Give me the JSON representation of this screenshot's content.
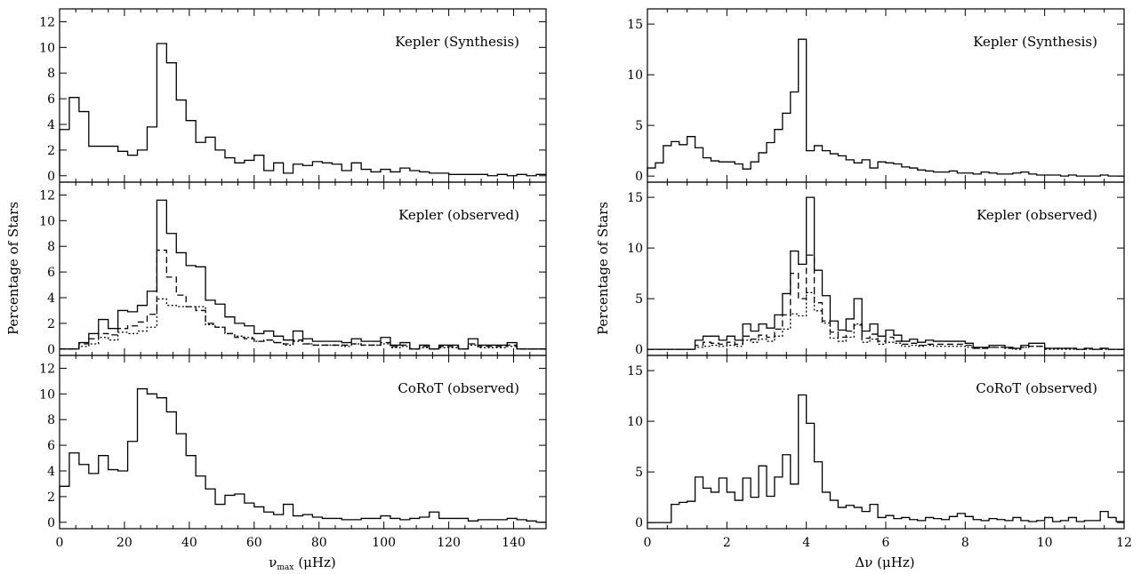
{
  "figure": {
    "ylabel": "Percentage of Stars",
    "left_xlabel": "ν",
    "left_xlabel_sub": "max",
    "left_xlabel_unit": "(μHz)",
    "right_xlabel": "Δν (μHz)"
  },
  "chart_data": [
    {
      "type": "step-histogram",
      "title": "Kepler (Synthesis)",
      "xlabel": "ν_max (μHz)",
      "ylabel": "Percentage of Stars",
      "xlim": [
        0,
        150
      ],
      "ylim": [
        -0.5,
        13
      ],
      "xticks": [
        0,
        20,
        40,
        60,
        80,
        100,
        120,
        140
      ],
      "yticks": [
        0,
        2,
        4,
        6,
        8,
        10,
        12
      ],
      "grid": false,
      "bin_edges": [
        0,
        3,
        6,
        9,
        12,
        15,
        18,
        21,
        24,
        27,
        30,
        33,
        36,
        39,
        42,
        45,
        48,
        51,
        54,
        57,
        60,
        63,
        66,
        69,
        72,
        75,
        78,
        81,
        84,
        87,
        90,
        93,
        96,
        99,
        102,
        105,
        108,
        111,
        114,
        117,
        120,
        123,
        126,
        129,
        132,
        135,
        138,
        141,
        144,
        147,
        150
      ],
      "series": [
        {
          "style": "solid",
          "values": [
            3.6,
            6.1,
            5.0,
            2.3,
            2.3,
            2.3,
            1.9,
            1.6,
            2.0,
            3.8,
            10.3,
            8.8,
            5.9,
            4.3,
            2.6,
            3.0,
            2.0,
            1.4,
            1.0,
            1.2,
            1.6,
            0.4,
            1.0,
            0.2,
            0.9,
            0.8,
            1.1,
            1.0,
            0.9,
            0.4,
            1.0,
            0.5,
            0.3,
            0.5,
            0.3,
            0.6,
            0.4,
            0.3,
            0.2,
            0.2,
            0.1,
            0.1,
            0.1,
            0.1,
            0.0,
            0.1,
            0.0,
            0.1,
            0.0,
            0.1
          ]
        }
      ]
    },
    {
      "type": "step-histogram",
      "title": "Kepler (observed)",
      "xlabel": "ν_max (μHz)",
      "ylabel": "Percentage of Stars",
      "xlim": [
        0,
        150
      ],
      "ylim": [
        -0.5,
        13
      ],
      "xticks": [
        0,
        20,
        40,
        60,
        80,
        100,
        120,
        140
      ],
      "yticks": [
        0,
        2,
        4,
        6,
        8,
        10,
        12
      ],
      "grid": false,
      "bin_edges": [
        0,
        3,
        6,
        9,
        12,
        15,
        18,
        21,
        24,
        27,
        30,
        33,
        36,
        39,
        42,
        45,
        48,
        51,
        54,
        57,
        60,
        63,
        66,
        69,
        72,
        75,
        78,
        81,
        84,
        87,
        90,
        93,
        96,
        99,
        102,
        105,
        108,
        111,
        114,
        117,
        120,
        123,
        126,
        129,
        132,
        135,
        138,
        141,
        144,
        147,
        150
      ],
      "series": [
        {
          "style": "solid",
          "values": [
            0.0,
            0.0,
            0.5,
            1.2,
            2.3,
            1.6,
            3.0,
            2.9,
            3.4,
            4.5,
            11.6,
            9.0,
            7.5,
            6.5,
            6.4,
            3.8,
            3.5,
            2.5,
            2.0,
            1.8,
            1.2,
            1.4,
            1.0,
            0.7,
            1.4,
            0.8,
            0.6,
            0.6,
            0.6,
            0.5,
            0.8,
            0.6,
            0.6,
            0.9,
            0.3,
            0.5,
            0.0,
            0.3,
            0.0,
            0.3,
            0.3,
            0.0,
            0.8,
            0.3,
            0.3,
            0.3,
            0.5,
            0.0,
            0.0,
            0.0
          ]
        },
        {
          "style": "dashed",
          "values": [
            0.0,
            0.0,
            0.4,
            0.8,
            1.2,
            1.1,
            1.6,
            1.8,
            2.1,
            2.7,
            7.7,
            5.6,
            4.2,
            3.3,
            3.0,
            2.0,
            1.7,
            1.2,
            0.9,
            0.8,
            0.6,
            0.7,
            0.5,
            0.4,
            0.7,
            0.4,
            0.3,
            0.3,
            0.3,
            0.3,
            0.4,
            0.3,
            0.3,
            0.5,
            0.2,
            0.3,
            0.0,
            0.2,
            0.0,
            0.2,
            0.2,
            0.0,
            0.4,
            0.2,
            0.2,
            0.2,
            0.3,
            0.0,
            0.0,
            0.0
          ]
        },
        {
          "style": "dotted",
          "values": [
            0.0,
            0.0,
            0.2,
            0.4,
            0.9,
            0.7,
            1.3,
            1.2,
            1.4,
            1.7,
            3.9,
            3.4,
            3.3,
            3.3,
            3.3,
            1.9,
            1.7,
            1.2,
            1.0,
            0.9,
            0.6,
            0.7,
            0.5,
            0.3,
            0.6,
            0.4,
            0.3,
            0.3,
            0.3,
            0.2,
            0.4,
            0.3,
            0.3,
            0.4,
            0.1,
            0.2,
            0.0,
            0.1,
            0.0,
            0.1,
            0.1,
            0.0,
            0.3,
            0.1,
            0.1,
            0.1,
            0.2,
            0.0,
            0.0,
            0.0
          ]
        }
      ]
    },
    {
      "type": "step-histogram",
      "title": "CoRoT (observed)",
      "xlabel": "ν_max (μHz)",
      "ylabel": "Percentage of Stars",
      "xlim": [
        0,
        150
      ],
      "ylim": [
        -0.5,
        13
      ],
      "xticks": [
        0,
        20,
        40,
        60,
        80,
        100,
        120,
        140
      ],
      "yticks": [
        0,
        2,
        4,
        6,
        8,
        10,
        12
      ],
      "grid": false,
      "bin_edges": [
        0,
        3,
        6,
        9,
        12,
        15,
        18,
        21,
        24,
        27,
        30,
        33,
        36,
        39,
        42,
        45,
        48,
        51,
        54,
        57,
        60,
        63,
        66,
        69,
        72,
        75,
        78,
        81,
        84,
        87,
        90,
        93,
        96,
        99,
        102,
        105,
        108,
        111,
        114,
        117,
        120,
        123,
        126,
        129,
        132,
        135,
        138,
        141,
        144,
        147,
        150
      ],
      "series": [
        {
          "style": "solid",
          "values": [
            2.8,
            5.4,
            4.5,
            3.8,
            5.2,
            4.1,
            4.0,
            6.3,
            10.4,
            10.0,
            9.7,
            8.6,
            6.9,
            5.2,
            3.6,
            2.6,
            1.4,
            2.1,
            2.2,
            1.5,
            1.2,
            0.8,
            0.6,
            1.4,
            0.5,
            0.6,
            0.4,
            0.3,
            0.3,
            0.2,
            0.2,
            0.3,
            0.3,
            0.5,
            0.3,
            0.2,
            0.3,
            0.4,
            0.8,
            0.3,
            0.3,
            0.3,
            0.1,
            0.2,
            0.2,
            0.2,
            0.3,
            0.2,
            0.1,
            0.0
          ]
        }
      ]
    },
    {
      "type": "step-histogram",
      "title": "Kepler (Synthesis)",
      "xlabel": "Δν (μHz)",
      "ylabel": "Percentage of Stars",
      "xlim": [
        0,
        12
      ],
      "ylim": [
        -0.6,
        16.5
      ],
      "xticks": [
        0,
        2,
        4,
        6,
        8,
        10,
        12
      ],
      "yticks": [
        0,
        5,
        10,
        15
      ],
      "grid": false,
      "bin_edges": [
        0,
        0.2,
        0.4,
        0.6,
        0.8,
        1.0,
        1.2,
        1.4,
        1.6,
        1.8,
        2.0,
        2.2,
        2.4,
        2.6,
        2.8,
        3.0,
        3.2,
        3.4,
        3.6,
        3.8,
        4.0,
        4.2,
        4.4,
        4.6,
        4.8,
        5.0,
        5.2,
        5.4,
        5.6,
        5.8,
        6.0,
        6.2,
        6.4,
        6.6,
        6.8,
        7.0,
        7.2,
        7.4,
        7.6,
        7.8,
        8.0,
        8.2,
        8.4,
        8.6,
        8.8,
        9.0,
        9.2,
        9.4,
        9.6,
        9.8,
        10.0,
        10.2,
        10.4,
        10.6,
        10.8,
        11.0,
        11.2,
        11.4,
        11.6,
        11.8,
        12.0
      ],
      "series": [
        {
          "style": "solid",
          "values": [
            0.8,
            1.3,
            3.0,
            3.4,
            3.1,
            3.9,
            2.8,
            1.8,
            1.5,
            1.4,
            1.4,
            1.2,
            0.7,
            1.4,
            2.3,
            3.3,
            4.6,
            6.2,
            8.3,
            13.5,
            2.5,
            3.0,
            2.5,
            2.2,
            2.0,
            1.6,
            1.3,
            1.6,
            0.8,
            1.4,
            1.3,
            1.2,
            0.9,
            0.8,
            0.6,
            0.5,
            0.4,
            0.4,
            0.5,
            0.3,
            0.3,
            0.2,
            0.4,
            0.3,
            0.2,
            0.2,
            0.3,
            0.4,
            0.2,
            0.1,
            0.1,
            0.1,
            0.0,
            0.1,
            0.0,
            0.0,
            0.0,
            0.1,
            0.0,
            0.0
          ]
        }
      ]
    },
    {
      "type": "step-histogram",
      "title": "Kepler (observed)",
      "xlabel": "Δν (μHz)",
      "ylabel": "Percentage of Stars",
      "xlim": [
        0,
        12
      ],
      "ylim": [
        -0.6,
        16.5
      ],
      "xticks": [
        0,
        2,
        4,
        6,
        8,
        10,
        12
      ],
      "yticks": [
        0,
        5,
        10,
        15
      ],
      "grid": false,
      "bin_edges": [
        0,
        0.2,
        0.4,
        0.6,
        0.8,
        1.0,
        1.2,
        1.4,
        1.6,
        1.8,
        2.0,
        2.2,
        2.4,
        2.6,
        2.8,
        3.0,
        3.2,
        3.4,
        3.6,
        3.8,
        4.0,
        4.2,
        4.4,
        4.6,
        4.8,
        5.0,
        5.2,
        5.4,
        5.6,
        5.8,
        6.0,
        6.2,
        6.4,
        6.6,
        6.8,
        7.0,
        7.2,
        7.4,
        7.6,
        7.8,
        8.0,
        8.2,
        8.4,
        8.6,
        8.8,
        9.0,
        9.2,
        9.4,
        9.6,
        9.8,
        10.0,
        10.2,
        10.4,
        10.6,
        10.8,
        11.0,
        11.2,
        11.4,
        11.6,
        11.8,
        12.0
      ],
      "series": [
        {
          "style": "solid",
          "values": [
            0.0,
            0.0,
            0.0,
            0.0,
            0.0,
            0.0,
            0.9,
            1.3,
            1.3,
            0.9,
            1.3,
            0.9,
            2.5,
            1.8,
            2.5,
            2.1,
            3.4,
            5.5,
            9.7,
            8.4,
            15.0,
            7.8,
            5.3,
            2.8,
            1.9,
            3.0,
            5.0,
            1.8,
            2.5,
            1.3,
            1.9,
            1.4,
            0.8,
            1.0,
            0.7,
            0.9,
            0.8,
            0.8,
            0.8,
            0.8,
            0.6,
            0.2,
            0.2,
            0.4,
            0.4,
            0.2,
            0.1,
            0.4,
            0.6,
            0.6,
            0.1,
            0.1,
            0.1,
            0.1,
            0.0,
            0.1,
            0.0,
            0.1,
            0.0,
            0.0
          ]
        },
        {
          "style": "dashed",
          "values": [
            0.0,
            0.0,
            0.0,
            0.0,
            0.0,
            0.0,
            0.4,
            0.7,
            0.6,
            0.5,
            0.7,
            0.5,
            1.3,
            1.0,
            1.4,
            1.2,
            2.0,
            3.4,
            7.5,
            5.0,
            9.3,
            4.6,
            2.8,
            1.7,
            1.2,
            1.8,
            2.4,
            1.1,
            1.5,
            0.8,
            1.2,
            0.8,
            0.5,
            0.6,
            0.4,
            0.5,
            0.5,
            0.5,
            0.5,
            0.5,
            0.4,
            0.1,
            0.1,
            0.2,
            0.2,
            0.1,
            0.1,
            0.2,
            0.3,
            0.3,
            0.1,
            0.1,
            0.1,
            0.1,
            0.0,
            0.1,
            0.0,
            0.1,
            0.0,
            0.0
          ]
        },
        {
          "style": "dotted",
          "values": [
            0.0,
            0.0,
            0.0,
            0.0,
            0.0,
            0.0,
            0.2,
            0.3,
            0.4,
            0.3,
            0.4,
            0.3,
            0.9,
            0.7,
            1.0,
            0.8,
            1.3,
            2.0,
            3.5,
            3.3,
            5.6,
            3.8,
            2.6,
            1.1,
            0.8,
            1.2,
            2.5,
            0.7,
            1.0,
            0.5,
            0.7,
            0.6,
            0.3,
            0.4,
            0.3,
            0.4,
            0.3,
            0.3,
            0.3,
            0.3,
            0.2,
            0.1,
            0.1,
            0.2,
            0.2,
            0.1,
            0.0,
            0.2,
            0.3,
            0.3,
            0.0,
            0.0,
            0.0,
            0.0,
            0.0,
            0.0,
            0.0,
            0.0,
            0.0,
            0.0
          ]
        }
      ]
    },
    {
      "type": "step-histogram",
      "title": "CoRoT (observed)",
      "xlabel": "Δν (μHz)",
      "ylabel": "Percentage of Stars",
      "xlim": [
        0,
        12
      ],
      "ylim": [
        -0.6,
        16.5
      ],
      "xticks": [
        0,
        2,
        4,
        6,
        8,
        10,
        12
      ],
      "yticks": [
        0,
        5,
        10,
        15
      ],
      "grid": false,
      "bin_edges": [
        0,
        0.2,
        0.4,
        0.6,
        0.8,
        1.0,
        1.2,
        1.4,
        1.6,
        1.8,
        2.0,
        2.2,
        2.4,
        2.6,
        2.8,
        3.0,
        3.2,
        3.4,
        3.6,
        3.8,
        4.0,
        4.2,
        4.4,
        4.6,
        4.8,
        5.0,
        5.2,
        5.4,
        5.6,
        5.8,
        6.0,
        6.2,
        6.4,
        6.6,
        6.8,
        7.0,
        7.2,
        7.4,
        7.6,
        7.8,
        8.0,
        8.2,
        8.4,
        8.6,
        8.8,
        9.0,
        9.2,
        9.4,
        9.6,
        9.8,
        10.0,
        10.2,
        10.4,
        10.6,
        10.8,
        11.0,
        11.2,
        11.4,
        11.6,
        11.8,
        12.0
      ],
      "series": [
        {
          "style": "solid",
          "values": [
            0.0,
            0.0,
            0.0,
            1.8,
            2.0,
            2.1,
            4.5,
            3.4,
            3.0,
            4.4,
            3.0,
            2.2,
            4.4,
            2.5,
            5.6,
            2.6,
            4.5,
            6.7,
            3.8,
            12.6,
            9.8,
            6.0,
            3.0,
            2.2,
            1.5,
            1.7,
            1.5,
            1.1,
            1.8,
            0.5,
            0.7,
            0.4,
            0.5,
            0.3,
            0.2,
            0.5,
            0.4,
            0.3,
            0.6,
            0.9,
            0.6,
            0.3,
            0.2,
            0.4,
            0.3,
            0.2,
            0.5,
            0.2,
            0.1,
            0.2,
            0.5,
            0.1,
            0.2,
            0.5,
            0.1,
            0.2,
            0.2,
            1.1,
            0.5,
            0.1
          ]
        }
      ]
    }
  ]
}
